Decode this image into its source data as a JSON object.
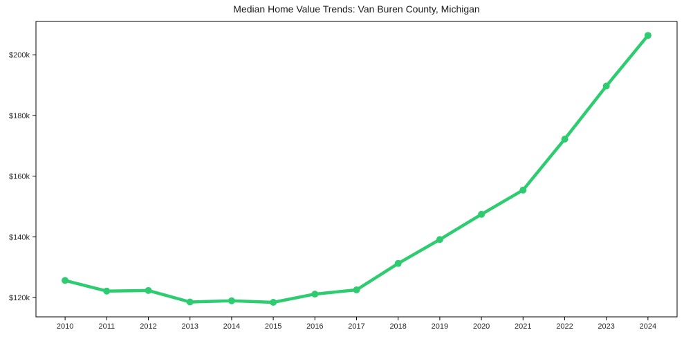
{
  "chart_data": {
    "type": "line",
    "title": "Median Home Value Trends: Van Buren County, Michigan",
    "xlabel": "",
    "ylabel": "",
    "x": [
      2010,
      2011,
      2012,
      2013,
      2014,
      2015,
      2016,
      2017,
      2018,
      2019,
      2020,
      2021,
      2022,
      2023,
      2024
    ],
    "values": [
      125600,
      122100,
      122300,
      118500,
      118900,
      118400,
      121100,
      122500,
      131200,
      139100,
      147400,
      155400,
      172200,
      189700,
      206400
    ],
    "series_name": "Median Home Value",
    "xlim": [
      2009.3,
      2024.7
    ],
    "ylim": [
      113600,
      211000
    ],
    "x_tick_labels": [
      "2010",
      "2011",
      "2012",
      "2013",
      "2014",
      "2015",
      "2016",
      "2017",
      "2018",
      "2019",
      "2020",
      "2021",
      "2022",
      "2023",
      "2024"
    ],
    "y_ticks": {
      "values": [
        120000,
        140000,
        160000,
        180000,
        200000
      ],
      "labels": [
        "$120k",
        "$140k",
        "$160k",
        "$180k",
        "$200k"
      ]
    },
    "grid": false,
    "legend_position": "none",
    "marker": "circle",
    "colors": {
      "line": "#2ecc71",
      "marker": "#2ecc71",
      "axis_frame": "#000000",
      "tick_label": "#262626",
      "title": "#1a1a1a",
      "background": "#ffffff"
    }
  }
}
